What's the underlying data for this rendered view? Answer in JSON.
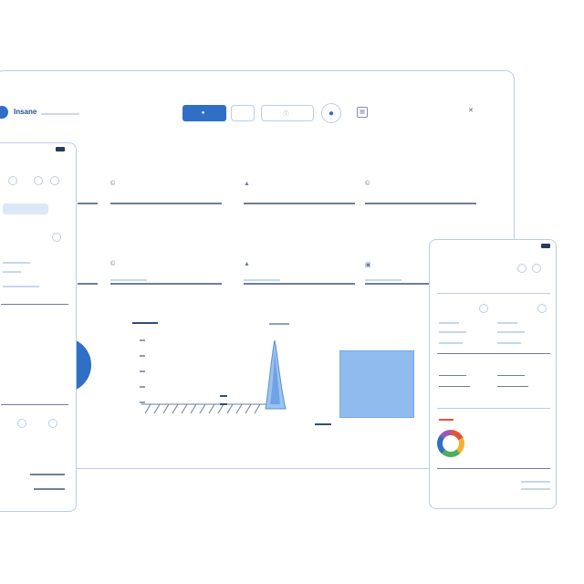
{
  "desktop": {
    "brand": "Insane",
    "header": {
      "primary_button": "",
      "button_2": "",
      "button_3": "",
      "notification_icon": "document-icon",
      "notification_text": "",
      "notification_close": "✕"
    },
    "sections": {
      "top_label": "",
      "top_sublabel": "",
      "mid_label": "",
      "mid_sublabel": ""
    },
    "metrics_row1": [
      {
        "icon": "©",
        "value": ""
      },
      {
        "icon": "▲",
        "value": ""
      },
      {
        "icon": "©",
        "value": ""
      }
    ],
    "metrics_row2": [
      {
        "icon": "©",
        "value": ""
      },
      {
        "icon": "▲",
        "value": ""
      },
      {
        "icon": "▣",
        "value": ""
      }
    ],
    "chart": {
      "caption": "",
      "legend_1": "",
      "legend_2": "",
      "box_text": ""
    }
  },
  "phone_left": {
    "time": "",
    "rows": [
      "",
      "",
      "",
      ""
    ],
    "nav_items": [
      "",
      "",
      ""
    ]
  },
  "phone_right": {
    "time": "",
    "title": "",
    "tabs": [
      "",
      ""
    ],
    "stats": [
      "",
      ""
    ],
    "donut_legend": [
      "",
      "",
      "",
      ""
    ],
    "footer": ""
  },
  "colors": {
    "accent": "#2f6fc6",
    "frame": "#b9cde6",
    "light_fill": "#8fbbef"
  }
}
